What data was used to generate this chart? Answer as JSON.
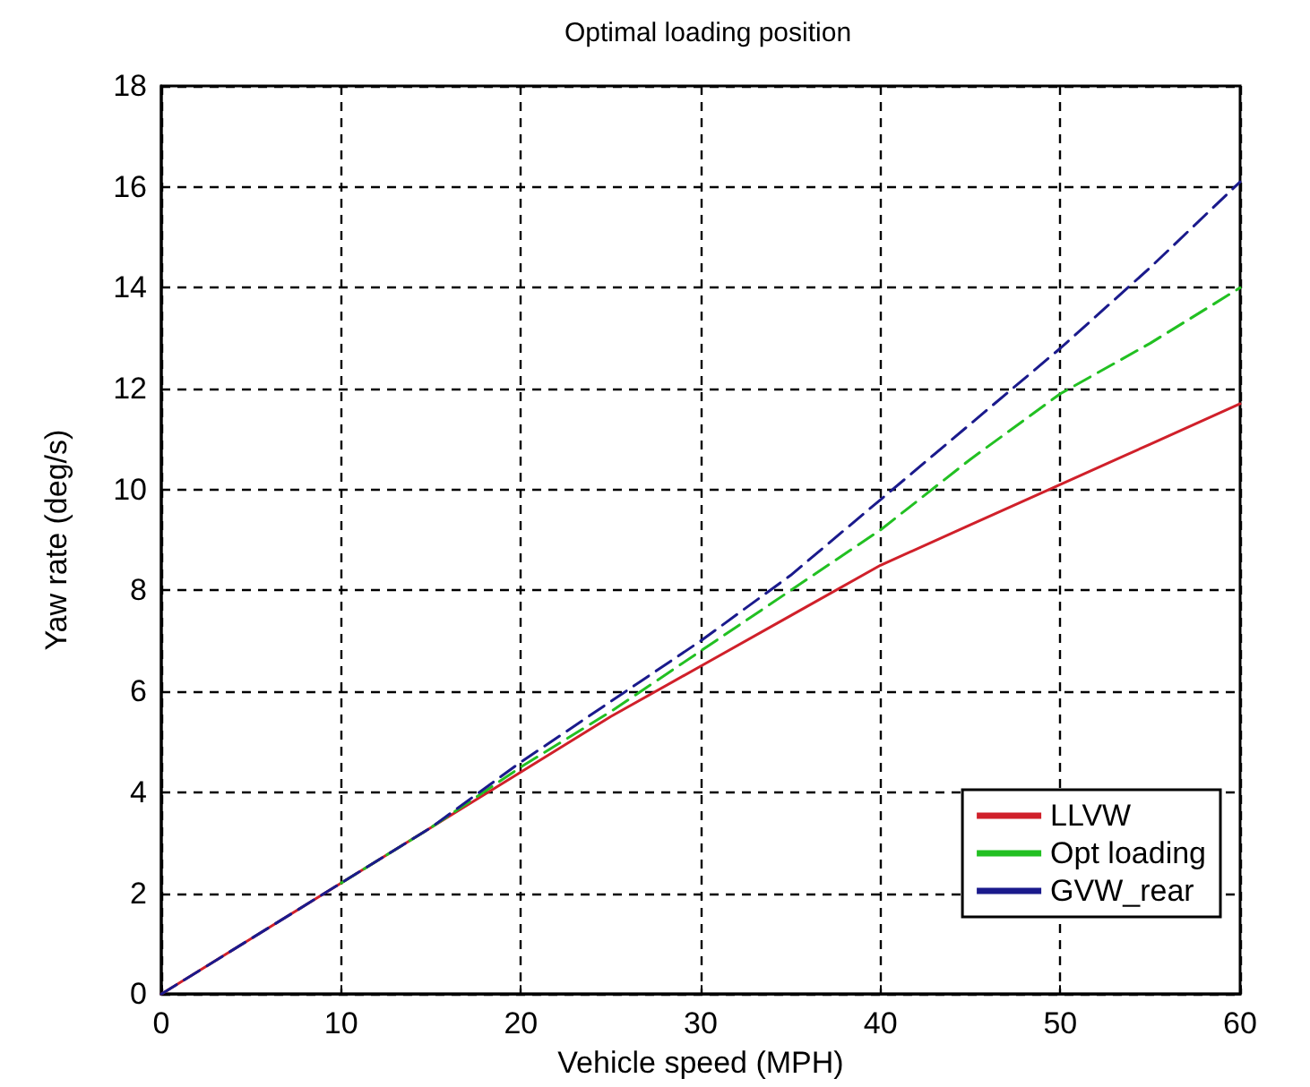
{
  "chart_data": {
    "type": "line",
    "title": "Optimal loading position",
    "xlabel": "Vehicle speed (MPH)",
    "ylabel": "Yaw rate (deg/s)",
    "x": [
      0,
      5,
      10,
      15,
      20,
      25,
      30,
      35,
      40,
      45,
      50,
      55,
      60
    ],
    "series": [
      {
        "name": "LLVW",
        "color": "#d0202a",
        "line_style": "solid",
        "values": [
          0,
          1.1,
          2.2,
          3.3,
          4.4,
          5.5,
          6.5,
          7.5,
          8.5,
          9.3,
          10.1,
          10.9,
          11.7
        ]
      },
      {
        "name": "Opt loading",
        "color": "#22c022",
        "line_style": "dashed",
        "values": [
          null,
          null,
          2.2,
          3.3,
          4.5,
          5.6,
          6.8,
          8.0,
          9.2,
          10.6,
          11.9,
          12.9,
          14.0
        ]
      },
      {
        "name": "GVW_rear",
        "color": "#1a1a8c",
        "line_style": "dashed",
        "values": [
          0,
          1.1,
          2.2,
          3.3,
          4.6,
          5.8,
          7.0,
          8.3,
          9.8,
          11.3,
          12.8,
          14.4,
          16.1
        ]
      }
    ],
    "xlim": [
      0,
      60
    ],
    "xticks": [
      0,
      10,
      20,
      30,
      40,
      50,
      60
    ],
    "ylim": [
      0,
      18
    ],
    "yticks": [
      0,
      2,
      4,
      6,
      8,
      10,
      12,
      14,
      16,
      18
    ],
    "grid": true,
    "legend": "bottom right",
    "marker": "none"
  }
}
